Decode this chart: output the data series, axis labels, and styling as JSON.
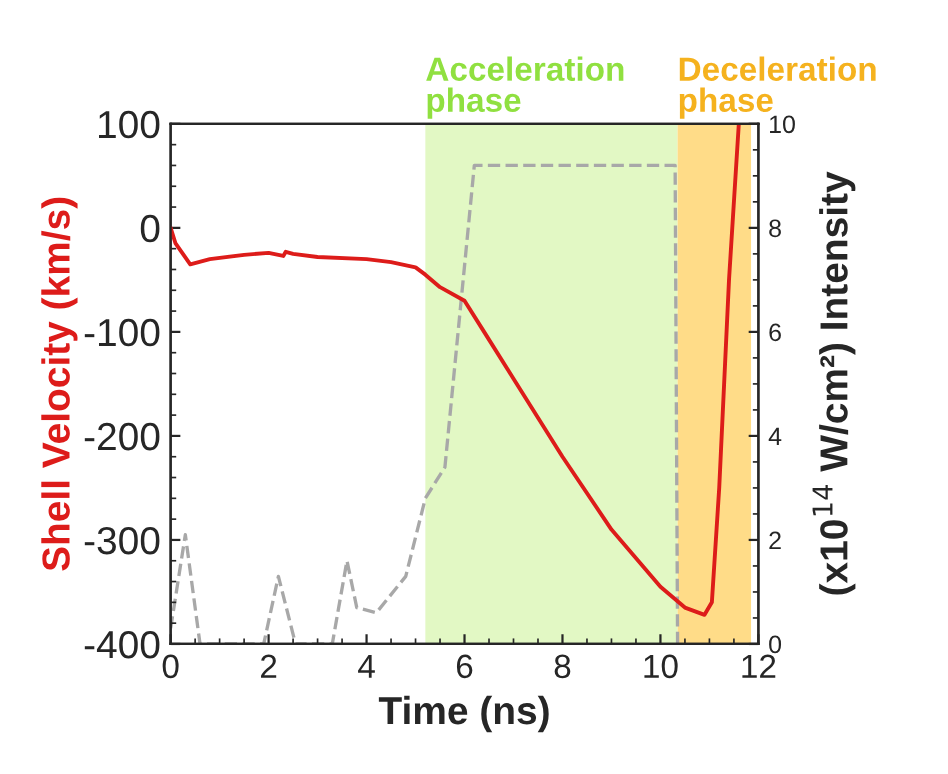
{
  "chart_data": {
    "type": "line",
    "xlabel": "Time (ns)",
    "ylabel": "Shell Velocity (km/s)",
    "y2label": "(x10$^{14}$ W/cm²) Intensity",
    "xlim": [
      0,
      12
    ],
    "xticks": [
      0,
      2,
      4,
      6,
      8,
      10,
      12
    ],
    "ylim": [
      -400,
      100
    ],
    "yticks": [
      -400,
      -300,
      -200,
      -100,
      0,
      100
    ],
    "y2lim": [
      0,
      10
    ],
    "y2ticks": [
      0,
      2,
      4,
      6,
      8,
      10
    ],
    "grid": false,
    "legend": false,
    "marker": "none",
    "series": [
      {
        "color": "#dd1c1a",
        "line_style": "solid",
        "x": [
          0,
          0.1,
          0.4,
          0.8,
          1.5,
          2,
          2.3,
          2.35,
          2.5,
          3,
          4,
          4.5,
          5,
          5.2,
          5.5,
          6,
          6.4,
          7,
          8,
          9,
          10,
          10.5,
          10.9,
          11.05,
          11.2,
          11.4,
          11.6
        ],
        "values": [
          0,
          -15,
          -35,
          -30,
          -26,
          -24,
          -27,
          -23,
          -25,
          -28,
          -30,
          -33,
          -38,
          -45,
          -57,
          -70,
          -100,
          -145,
          -220,
          -290,
          -345,
          -365,
          -372,
          -360,
          -250,
          -50,
          100
        ]
      },
      {
        "color": "#a8a8a8",
        "line_style": "dashed",
        "axis": "y2",
        "x": [
          0,
          0.3,
          0.6,
          1.9,
          2.2,
          2.55,
          3.3,
          3.6,
          3.8,
          4.2,
          4.8,
          5.2,
          5.6,
          6.2,
          10.3,
          10.35
        ],
        "values": [
          0.3,
          2.1,
          0,
          0,
          1.3,
          0,
          0,
          1.6,
          0.7,
          0.6,
          1.3,
          2.8,
          3.4,
          9.2,
          9.2,
          0
        ]
      }
    ],
    "bands": [
      {
        "axis": "x",
        "from": 5.2,
        "to": 10.35,
        "label": "Acceleration phase",
        "color": "#e2f8c4"
      },
      {
        "axis": "x",
        "from": 10.35,
        "to": 11.85,
        "label": "Deceleration phase",
        "color": "#ffdc88"
      }
    ]
  }
}
